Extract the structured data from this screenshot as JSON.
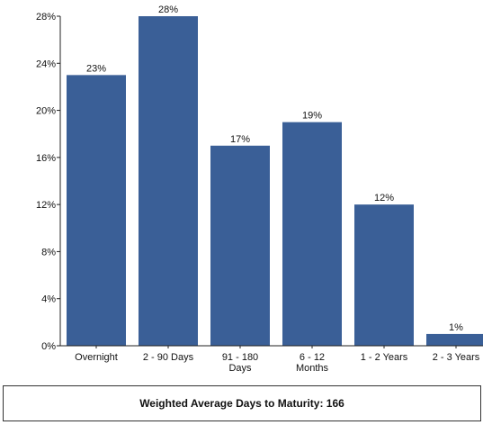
{
  "chart_data": {
    "type": "bar",
    "categories": [
      [
        "Overnight"
      ],
      [
        "2 - 90 Days"
      ],
      [
        "91 - 180",
        "Days"
      ],
      [
        "6 - 12",
        "Months"
      ],
      [
        "1 - 2 Years"
      ],
      [
        "2 - 3 Years"
      ]
    ],
    "values": [
      23,
      28,
      17,
      19,
      12,
      1
    ],
    "data_labels": [
      "23%",
      "28%",
      "17%",
      "19%",
      "12%",
      "1%"
    ],
    "yticks": [
      0,
      4,
      8,
      12,
      16,
      20,
      24,
      28
    ],
    "ytick_labels": [
      "0%",
      "4%",
      "8%",
      "12%",
      "16%",
      "20%",
      "24%",
      "28%"
    ],
    "ylim": [
      0,
      28
    ],
    "bar_color": "#3a5f97",
    "grid": false,
    "title": "",
    "xlabel": "",
    "ylabel": ""
  },
  "footer": {
    "text": "Weighted Average Days to Maturity:  166"
  }
}
